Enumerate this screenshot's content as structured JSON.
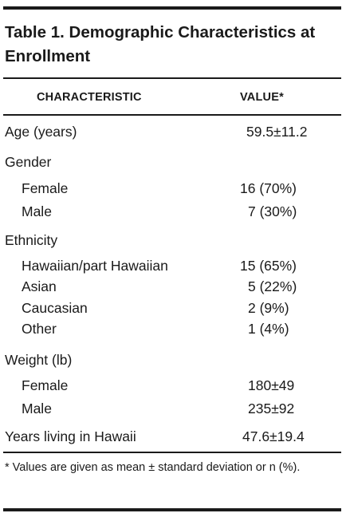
{
  "table": {
    "title": "Table 1.   Demographic Characteristics at Enrollment",
    "headers": {
      "characteristic": "CHARACTERISTIC",
      "value": "VALUE*"
    },
    "rows": [
      {
        "label": "Age (years)",
        "value": "59.5±11.2",
        "indent": false
      },
      {
        "label": "Gender",
        "value": "",
        "indent": false
      },
      {
        "label": "Female",
        "value": "16 (70%)",
        "indent": true
      },
      {
        "label": "Male",
        "value": "  7 (30%)",
        "indent": true
      },
      {
        "label": "Ethnicity",
        "value": "",
        "indent": false
      },
      {
        "label": "Hawaiian/part Hawaiian",
        "value": "15 (65%)",
        "indent": true
      },
      {
        "label": "Asian",
        "value": "  5 (22%)",
        "indent": true
      },
      {
        "label": "Caucasian",
        "value": "  2 (9%)",
        "indent": true
      },
      {
        "label": "Other",
        "value": "  1 (4%)",
        "indent": true
      },
      {
        "label": "Weight (lb)",
        "value": "",
        "indent": false
      },
      {
        "label": "Female",
        "value": "180±49",
        "indent": true
      },
      {
        "label": "Male",
        "value": "235±92",
        "indent": true
      },
      {
        "label": "Years living in Hawaii",
        "value": "47.6±19.4",
        "indent": false
      }
    ],
    "footnote": "* Values are given as mean ± standard deviation or n (%)."
  }
}
